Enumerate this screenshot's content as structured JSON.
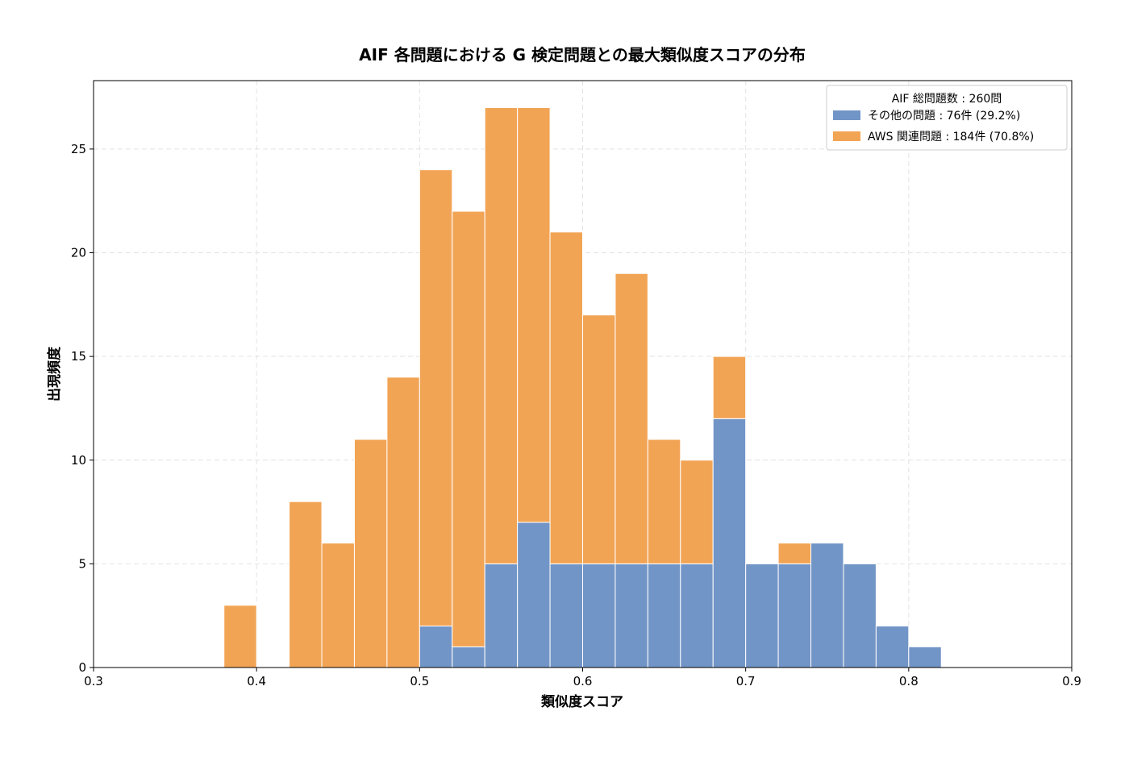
{
  "chart_data": {
    "type": "bar",
    "stacked": true,
    "title": "AIF 各問題における G 検定問題との最大類似度スコアの分布",
    "xlabel": "類似度スコア",
    "ylabel": "出現頻度",
    "xlim": [
      0.3,
      0.9
    ],
    "ylim": [
      0,
      28.3
    ],
    "xticks": [
      "0.3",
      "0.4",
      "0.5",
      "0.6",
      "0.7",
      "0.8",
      "0.9"
    ],
    "yticks": [
      "0",
      "5",
      "10",
      "15",
      "20",
      "25"
    ],
    "grid": true,
    "legend_position": "top-right",
    "legend_title": "AIF 総問題数 : 260問",
    "bin_width": 0.02,
    "bins": [
      0.38,
      0.4,
      0.42,
      0.44,
      0.46,
      0.48,
      0.5,
      0.52,
      0.54,
      0.56,
      0.58,
      0.6,
      0.62,
      0.64,
      0.66,
      0.68,
      0.7,
      0.72,
      0.74,
      0.76,
      0.78,
      0.8
    ],
    "series": [
      {
        "name": "その他の問題 : 76件 (29.2%)",
        "color": "#7295c7",
        "values": [
          0,
          0,
          0,
          0,
          0,
          0,
          2,
          1,
          5,
          7,
          5,
          5,
          5,
          5,
          5,
          12,
          5,
          5,
          6,
          5,
          2,
          1
        ]
      },
      {
        "name": "AWS 関連問題 : 184件 (70.8%)",
        "color": "#f2a455",
        "values": [
          3,
          0,
          8,
          6,
          11,
          14,
          22,
          21,
          22,
          20,
          16,
          12,
          14,
          6,
          5,
          3,
          0,
          1,
          0,
          0,
          0,
          0
        ]
      }
    ]
  }
}
